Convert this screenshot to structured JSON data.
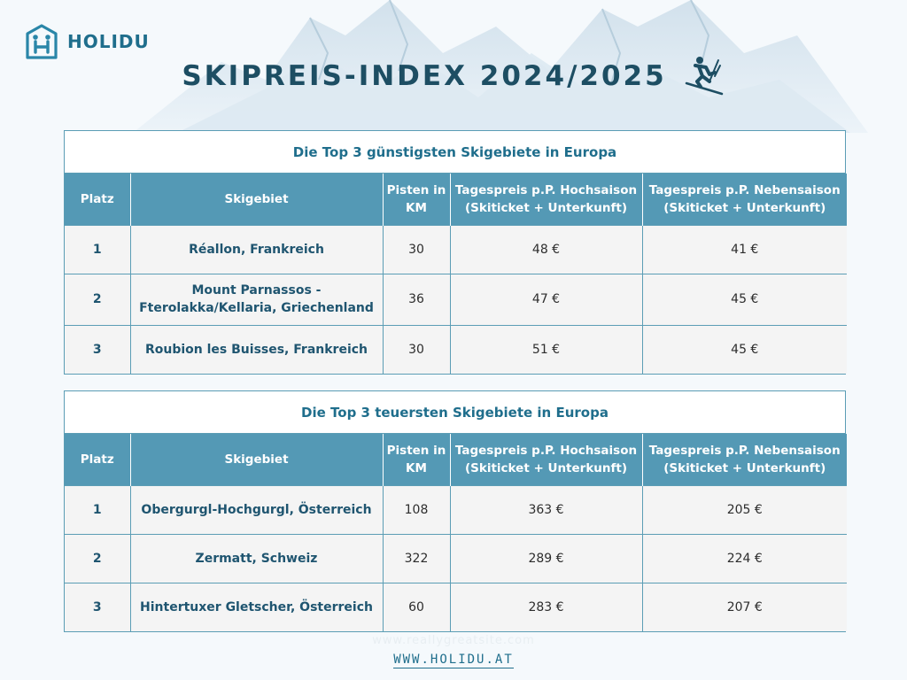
{
  "brand": {
    "name": "HOLIDU"
  },
  "title": "SKIPREIS-INDEX 2024/2025",
  "icons": {
    "logo": "holidu-house-logo",
    "title": "skier-icon"
  },
  "colors": {
    "primary": "#1f6e8c",
    "header_bg": "#5499b5",
    "title_text": "#1d4e63"
  },
  "columns": [
    "Platz",
    "Skigebiet",
    "Pisten in KM",
    "Tagespreis p.P. Hochsaison (Skiticket + Unterkunft)",
    "Tagespreis p.P. Nebensaison (Skiticket + Unterkunft)"
  ],
  "cheapest": {
    "title": "Die Top 3 günstigsten Skigebiete in Europa",
    "rows": [
      {
        "platz": "1",
        "name": "Réallon, Frankreich",
        "km": "30",
        "hoch": "48 €",
        "neben": "41 €"
      },
      {
        "platz": "2",
        "name": "Mount Parnassos - Fterolakka/Kellaria, Griechenland",
        "km": "36",
        "hoch": "47 €",
        "neben": "45 €"
      },
      {
        "platz": "3",
        "name": "Roubion les Buisses, Frankreich",
        "km": "30",
        "hoch": "51 €",
        "neben": "45 €"
      }
    ]
  },
  "expensive": {
    "title": "Die Top 3 teuersten Skigebiete in Europa",
    "rows": [
      {
        "platz": "1",
        "name": "Obergurgl-Hochgurgl, Österreich",
        "km": "108",
        "hoch": "363 €",
        "neben": "205 €"
      },
      {
        "platz": "2",
        "name": "Zermatt, Schweiz",
        "km": "322",
        "hoch": "289 €",
        "neben": "224 €"
      },
      {
        "platz": "3",
        "name": "Hintertuxer Gletscher, Österreich",
        "km": "60",
        "hoch": "283 €",
        "neben": "207 €"
      }
    ]
  },
  "footer": {
    "ghost": "www.reallygreatsite.com",
    "url": "WWW.HOLIDU.AT"
  }
}
